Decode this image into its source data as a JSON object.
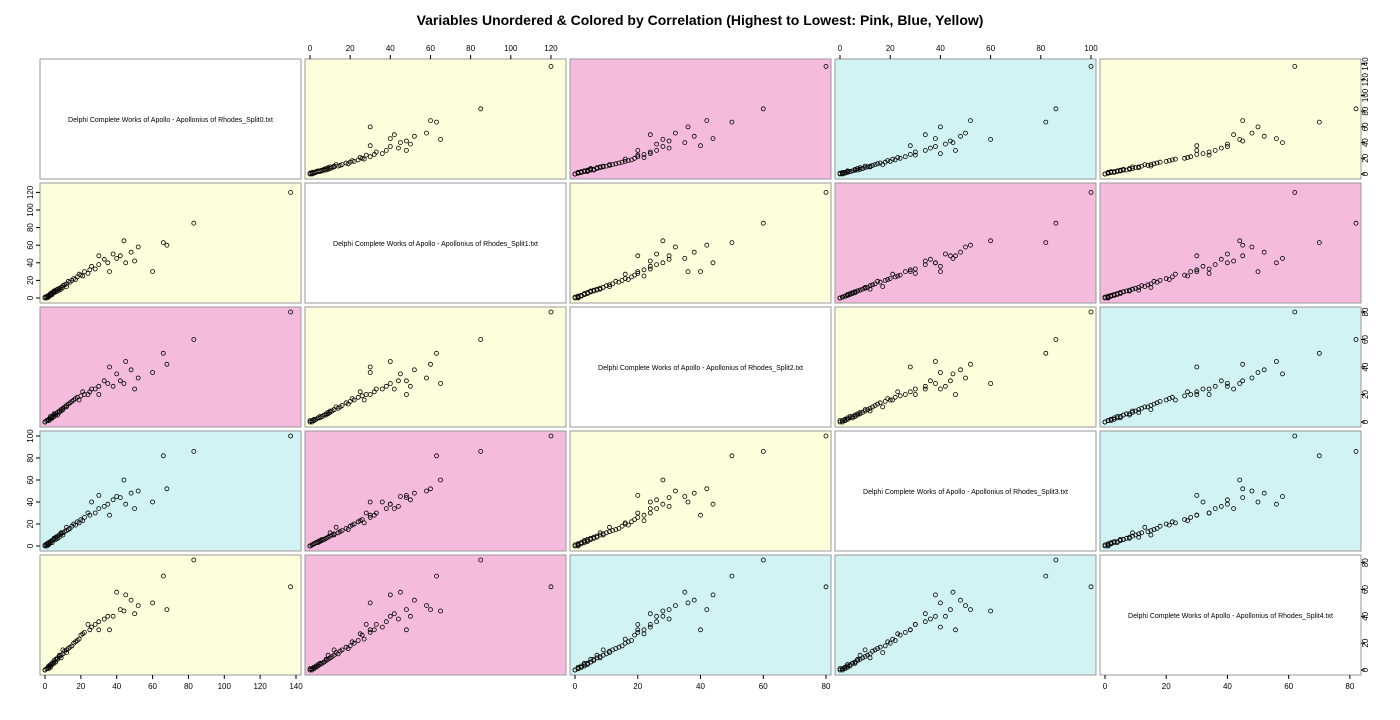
{
  "chart_data": {
    "type": "scatter",
    "subtype": "scatterplot-matrix",
    "title": "Variables Unordered & Colored by Correlation (Highest to Lowest: Pink, Blue, Yellow)",
    "variables": [
      "Delphi Complete Works of Apollo - Apollonius of Rhodes_Split0.txt",
      "Delphi Complete Works of Apollo - Apollonius of Rhodes_Split1.txt",
      "Delphi Complete Works of Apollo - Apollonius of Rhodes_Split2.txt",
      "Delphi Complete Works of Apollo - Apollonius of Rhodes_Split3.txt",
      "Delphi Complete Works of Apollo - Apollonius of Rhodes_Split4.txt"
    ],
    "axis_ranges": [
      [
        0,
        140
      ],
      [
        0,
        125
      ],
      [
        0,
        80
      ],
      [
        0,
        100
      ],
      [
        0,
        82
      ]
    ],
    "ticks": [
      [
        "0",
        "20",
        "40",
        "60",
        "80",
        "100",
        "120",
        "140"
      ],
      [
        "0",
        "20",
        "40",
        "60",
        "80",
        "100",
        "120"
      ],
      [
        "0",
        "20",
        "40",
        "60",
        "80"
      ],
      [
        "0",
        "20",
        "40",
        "60",
        "80",
        "100"
      ],
      [
        "0",
        "20",
        "40",
        "60",
        "80"
      ]
    ],
    "tick_values": [
      [
        0,
        20,
        40,
        60,
        80,
        100,
        120,
        140
      ],
      [
        0,
        20,
        40,
        60,
        80,
        100,
        120
      ],
      [
        0,
        20,
        40,
        60,
        80
      ],
      [
        0,
        20,
        40,
        60,
        80,
        100
      ],
      [
        0,
        20,
        40,
        60,
        80
      ]
    ],
    "panel_colors": {
      "0-1": "yellow",
      "0-2": "pink",
      "0-3": "blue",
      "0-4": "yellow",
      "1-2": "yellow",
      "1-3": "pink",
      "1-4": "pink",
      "2-3": "yellow",
      "2-4": "blue",
      "3-4": "blue"
    },
    "colors": {
      "pink": "#f4bbdd",
      "blue": "#d2f3f3",
      "yellow": "#fdfedb",
      "diagonal": "#ffffff",
      "border": "#999999"
    },
    "legend": "Highest to Lowest: Pink, Blue, Yellow",
    "grid": false,
    "points": [
      [
        137,
        120,
        80,
        100,
        62
      ],
      [
        83,
        85,
        60,
        86,
        82
      ],
      [
        66,
        63,
        50,
        82,
        70
      ],
      [
        68,
        60,
        42,
        52,
        45
      ],
      [
        48,
        52,
        38,
        48,
        52
      ],
      [
        40,
        45,
        35,
        45,
        58
      ],
      [
        42,
        48,
        30,
        44,
        45
      ],
      [
        35,
        40,
        28,
        38,
        40
      ],
      [
        30,
        38,
        26,
        34,
        36
      ],
      [
        28,
        33,
        24,
        30,
        34
      ],
      [
        25,
        32,
        22,
        28,
        30
      ],
      [
        22,
        30,
        20,
        26,
        28
      ],
      [
        20,
        26,
        19,
        24,
        26
      ],
      [
        18,
        24,
        18,
        22,
        22
      ],
      [
        16,
        22,
        16,
        20,
        20
      ],
      [
        15,
        20,
        15,
        18,
        18
      ],
      [
        14,
        18,
        14,
        16,
        17
      ],
      [
        12,
        16,
        12,
        14,
        15
      ],
      [
        11,
        15,
        11,
        13,
        14
      ],
      [
        10,
        14,
        10,
        12,
        12
      ],
      [
        9,
        12,
        9,
        11,
        11
      ],
      [
        8,
        11,
        8,
        10,
        10
      ],
      [
        7,
        10,
        7,
        9,
        9
      ],
      [
        6,
        9,
        6,
        8,
        8
      ],
      [
        5,
        8,
        6,
        7,
        7
      ],
      [
        5,
        7,
        5,
        6,
        6
      ],
      [
        4,
        6,
        4,
        5,
        5
      ],
      [
        3,
        5,
        4,
        4,
        4
      ],
      [
        3,
        4,
        3,
        4,
        3
      ],
      [
        2,
        3,
        2,
        3,
        3
      ],
      [
        2,
        2,
        2,
        2,
        2
      ],
      [
        1,
        2,
        1,
        2,
        1
      ],
      [
        1,
        1,
        1,
        1,
        1
      ],
      [
        0,
        1,
        0,
        1,
        0
      ],
      [
        0,
        0,
        0,
        0,
        0
      ],
      [
        52,
        58,
        32,
        50,
        48
      ],
      [
        45,
        40,
        44,
        38,
        56
      ],
      [
        38,
        50,
        26,
        42,
        40
      ],
      [
        33,
        44,
        30,
        36,
        38
      ],
      [
        26,
        36,
        24,
        40,
        32
      ],
      [
        24,
        28,
        20,
        30,
        34
      ],
      [
        21,
        25,
        22,
        23,
        27
      ],
      [
        19,
        27,
        16,
        21,
        23
      ],
      [
        17,
        21,
        17,
        19,
        21
      ],
      [
        13,
        19,
        13,
        15,
        16
      ],
      [
        12,
        13,
        11,
        17,
        13
      ],
      [
        10,
        12,
        9,
        10,
        15
      ],
      [
        9,
        10,
        8,
        12,
        9
      ],
      [
        8,
        9,
        7,
        8,
        11
      ],
      [
        7,
        8,
        5,
        7,
        8
      ],
      [
        6,
        7,
        5,
        6,
        6
      ],
      [
        5,
        6,
        4,
        6,
        5
      ],
      [
        4,
        5,
        3,
        5,
        5
      ],
      [
        4,
        4,
        3,
        3,
        4
      ],
      [
        3,
        3,
        2,
        3,
        2
      ],
      [
        2,
        2,
        1,
        2,
        2
      ],
      [
        2,
        1,
        1,
        1,
        1
      ],
      [
        1,
        0,
        1,
        0,
        1
      ],
      [
        60,
        30,
        36,
        40,
        50
      ],
      [
        44,
        65,
        28,
        60,
        44
      ],
      [
        36,
        30,
        40,
        28,
        30
      ],
      [
        50,
        42,
        24,
        34,
        42
      ],
      [
        30,
        48,
        20,
        46,
        30
      ]
    ]
  }
}
